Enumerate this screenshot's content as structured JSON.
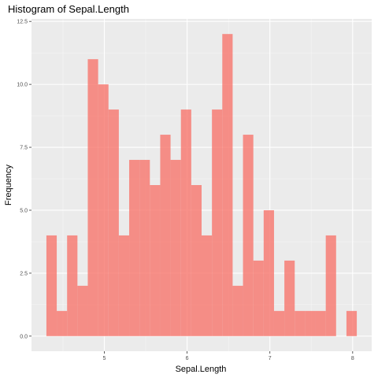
{
  "chart_data": {
    "type": "bar",
    "title": "Histogram of Sepal.Length",
    "xlabel": "Sepal.Length",
    "ylabel": "Frequency",
    "bin_width": 0.125,
    "bins": [
      {
        "x0": 4.3,
        "x1": 4.425,
        "count": 4
      },
      {
        "x0": 4.425,
        "x1": 4.55,
        "count": 1
      },
      {
        "x0": 4.55,
        "x1": 4.675,
        "count": 4
      },
      {
        "x0": 4.675,
        "x1": 4.8,
        "count": 2
      },
      {
        "x0": 4.8,
        "x1": 4.925,
        "count": 11
      },
      {
        "x0": 4.925,
        "x1": 5.05,
        "count": 10
      },
      {
        "x0": 5.05,
        "x1": 5.175,
        "count": 9
      },
      {
        "x0": 5.175,
        "x1": 5.3,
        "count": 4
      },
      {
        "x0": 5.3,
        "x1": 5.425,
        "count": 7
      },
      {
        "x0": 5.425,
        "x1": 5.55,
        "count": 7
      },
      {
        "x0": 5.55,
        "x1": 5.675,
        "count": 6
      },
      {
        "x0": 5.675,
        "x1": 5.8,
        "count": 8
      },
      {
        "x0": 5.8,
        "x1": 5.925,
        "count": 7
      },
      {
        "x0": 5.925,
        "x1": 6.05,
        "count": 9
      },
      {
        "x0": 6.05,
        "x1": 6.175,
        "count": 6
      },
      {
        "x0": 6.175,
        "x1": 6.3,
        "count": 4
      },
      {
        "x0": 6.3,
        "x1": 6.425,
        "count": 9
      },
      {
        "x0": 6.425,
        "x1": 6.55,
        "count": 12
      },
      {
        "x0": 6.55,
        "x1": 6.675,
        "count": 2
      },
      {
        "x0": 6.675,
        "x1": 6.8,
        "count": 8
      },
      {
        "x0": 6.8,
        "x1": 6.925,
        "count": 3
      },
      {
        "x0": 6.925,
        "x1": 7.05,
        "count": 5
      },
      {
        "x0": 7.05,
        "x1": 7.175,
        "count": 1
      },
      {
        "x0": 7.175,
        "x1": 7.3,
        "count": 3
      },
      {
        "x0": 7.3,
        "x1": 7.425,
        "count": 1
      },
      {
        "x0": 7.425,
        "x1": 7.55,
        "count": 1
      },
      {
        "x0": 7.55,
        "x1": 7.675,
        "count": 1
      },
      {
        "x0": 7.675,
        "x1": 7.8,
        "count": 4
      },
      {
        "x0": 7.8,
        "x1": 7.925,
        "count": 0
      },
      {
        "x0": 7.925,
        "x1": 8.05,
        "count": 1
      }
    ],
    "xlim": [
      4.12,
      8.23
    ],
    "ylim": [
      -0.6,
      12.6
    ],
    "x_ticks": [
      5,
      6,
      7,
      8
    ],
    "x_tick_labels": [
      "5",
      "6",
      "7",
      "8"
    ],
    "y_ticks": [
      0,
      2.5,
      5,
      7.5,
      10,
      12.5
    ],
    "y_tick_labels": [
      "0.0",
      "2.5",
      "5.0",
      "7.5",
      "10.0",
      "12.5"
    ],
    "grid": true,
    "legend": "none",
    "colors": {
      "bar_fill": "#F8766D",
      "bar_opacity": 0.8,
      "panel_background": "#EBEBEB",
      "grid_major": "#FFFFFF",
      "grid_minor": "#F5F5F5",
      "tick_text": "#4D4D4D"
    }
  }
}
